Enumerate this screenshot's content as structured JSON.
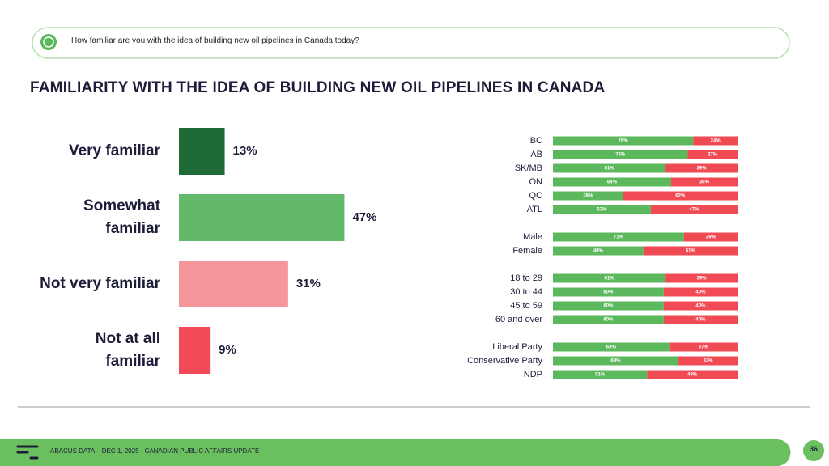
{
  "question": "How familiar are you with the idea of building new oil pipelines in Canada today?",
  "footer": "ABACUS DATA – DEC 1, 2025 - CANADIAN PUBLIC AFFAIRS UPDATE",
  "page_number": "36",
  "chart_data": [
    {
      "type": "hbar",
      "title": "FAMILIARITY WITH THE IDEA OF BUILDING NEW OIL PIPELINES IN CANADA",
      "categories": [
        "Very familiar",
        "Somewhat familiar",
        "Not very familiar",
        "Not at all familiar"
      ],
      "values": [
        13,
        47,
        31,
        9
      ],
      "value_labels": [
        "13%",
        "47%",
        "31%",
        "9%"
      ],
      "colors": [
        "#1e6b35",
        "#63b86a",
        "#f4969b",
        "#f24a57"
      ]
    },
    {
      "type": "stacked-hbar",
      "categories": [
        "BC",
        "AB",
        "SK/MB",
        "ON",
        "QC",
        "ATL",
        "Male",
        "Female",
        "18 to 29",
        "30 to 44",
        "45 to 59",
        "60 and over",
        "Liberal Party",
        "Conservative Party",
        "NDP"
      ],
      "series": [
        {
          "color": "#5cb85c",
          "values": [
            76,
            73,
            61,
            64,
            38,
            53,
            71,
            49,
            61,
            60,
            60,
            60,
            63,
            68,
            51
          ],
          "value_labels": [
            "76%",
            "73%",
            "61%",
            "64%",
            "38%",
            "53%",
            "71%",
            "49%",
            "61%",
            "60%",
            "60%",
            "60%",
            "63%",
            "68%",
            "51%"
          ]
        },
        {
          "color": "#f04b55",
          "values": [
            24,
            27,
            39,
            36,
            62,
            47,
            29,
            51,
            39,
            40,
            40,
            40,
            37,
            32,
            49
          ],
          "value_labels": [
            "24%",
            "27%",
            "39%",
            "36%",
            "62%",
            "47%",
            "29%",
            "51%",
            "39%",
            "40%",
            "40%",
            "40%",
            "37%",
            "32%",
            "49%"
          ]
        }
      ]
    }
  ]
}
